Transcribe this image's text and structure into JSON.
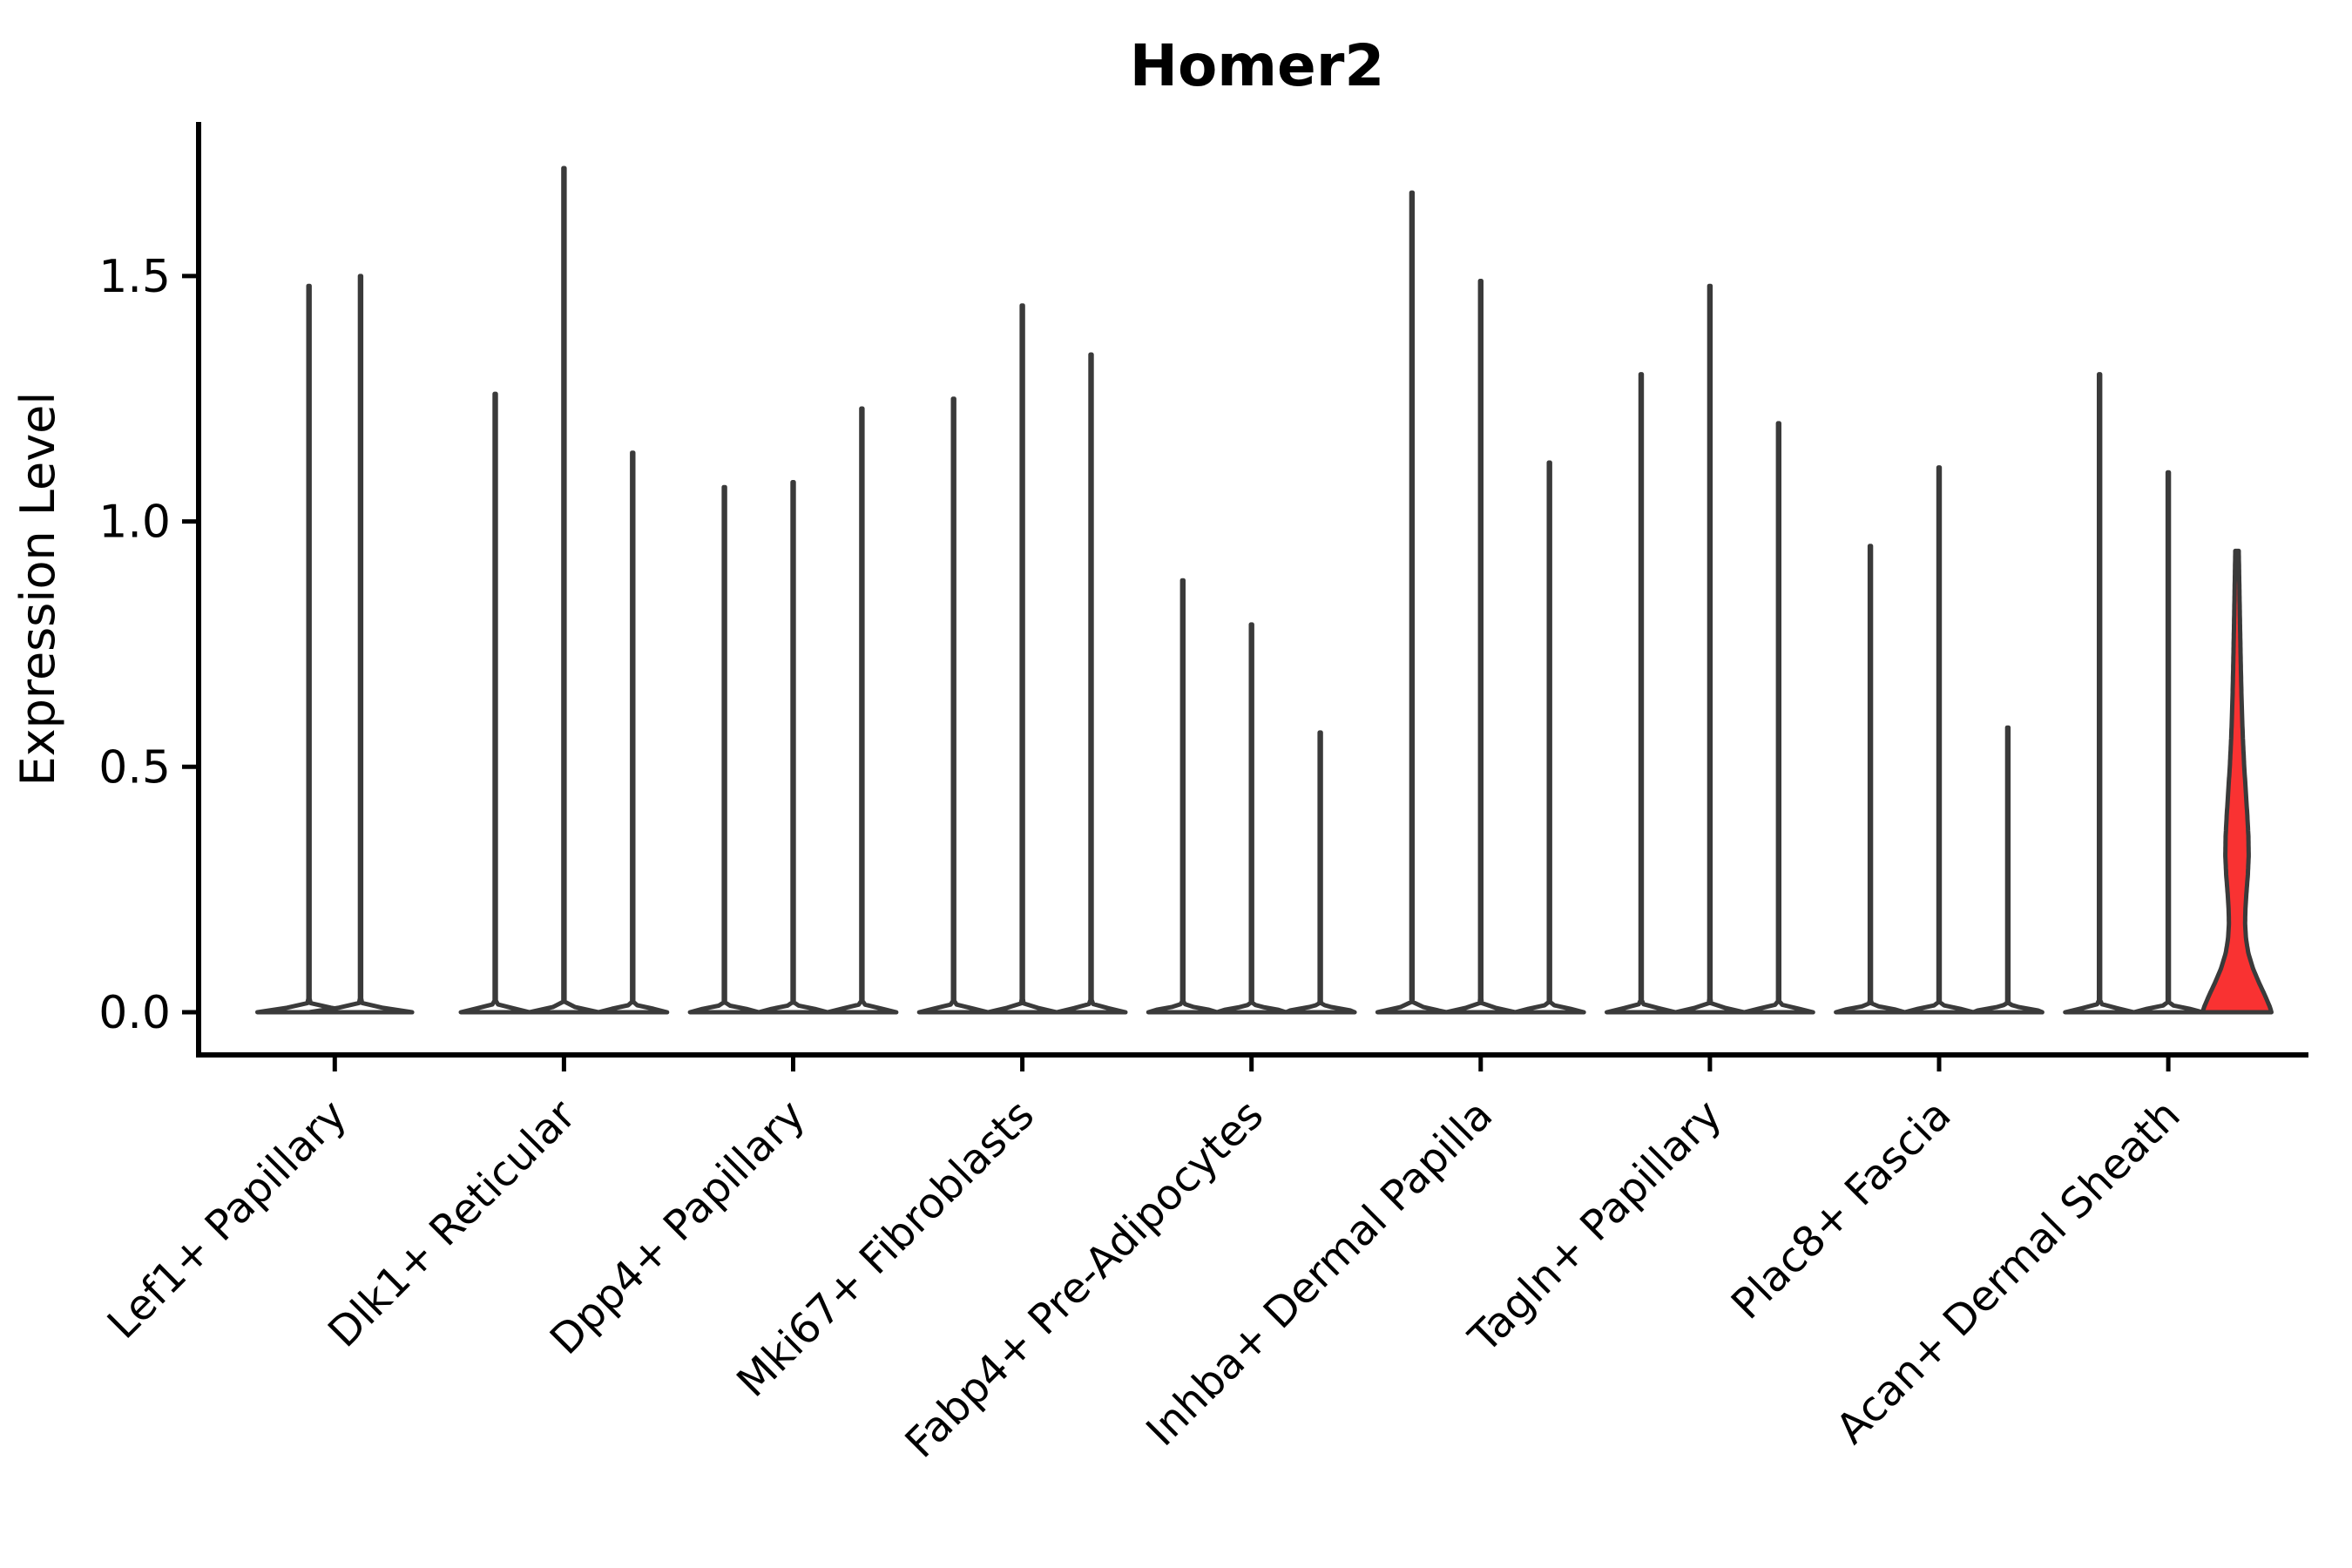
{
  "chart_data": {
    "type": "violin",
    "title": "Homer2",
    "ylabel": "Expression Level",
    "xlabel": "",
    "yticks": [
      {
        "label": "0.0",
        "value": 0.0
      },
      {
        "label": "0.5",
        "value": 0.5
      },
      {
        "label": "1.0",
        "value": 1.0
      },
      {
        "label": "1.5",
        "value": 1.5
      }
    ],
    "ylim": [
      -0.087,
      1.81
    ],
    "grid": "off",
    "legend": "none",
    "categories": [
      "Lef1+ Papillary",
      "Dlk1+ Reticular",
      "Dpp4+ Papillary",
      "Mki67+ Fibroblasts",
      "Fabp4+ Pre-Adipocytes",
      "Inhba+ Dermal Papilla",
      "Tagln+ Papillary",
      "Plac8+ Fascia",
      "Acan+ Dermal Sheath"
    ],
    "groups": [
      {
        "category": "Lef1+ Papillary",
        "violins": [
          {
            "max": 1.48
          },
          {
            "max": 1.5
          }
        ]
      },
      {
        "category": "Dlk1+ Reticular",
        "violins": [
          {
            "max": 1.26
          },
          {
            "max": 1.72
          },
          {
            "max": 1.14
          }
        ]
      },
      {
        "category": "Dpp4+ Papillary",
        "violins": [
          {
            "max": 1.07
          },
          {
            "max": 1.08
          },
          {
            "max": 1.23
          }
        ]
      },
      {
        "category": "Mki67+ Fibroblasts",
        "violins": [
          {
            "max": 1.25
          },
          {
            "max": 1.44
          },
          {
            "max": 1.34
          }
        ]
      },
      {
        "category": "Fabp4+ Pre-Adipocytes",
        "violins": [
          {
            "max": 0.88
          },
          {
            "max": 0.79
          },
          {
            "max": 0.57
          }
        ]
      },
      {
        "category": "Inhba+ Dermal Papilla",
        "violins": [
          {
            "max": 1.67
          },
          {
            "max": 1.49
          },
          {
            "max": 1.12
          }
        ]
      },
      {
        "category": "Tagln+ Papillary",
        "violins": [
          {
            "max": 1.3
          },
          {
            "max": 1.48
          },
          {
            "max": 1.2
          }
        ]
      },
      {
        "category": "Plac8+ Fascia",
        "violins": [
          {
            "max": 0.95
          },
          {
            "max": 1.11
          },
          {
            "max": 0.58
          }
        ]
      },
      {
        "category": "Acan+ Dermal Sheath",
        "violins": [
          {
            "max": 1.3
          },
          {
            "max": 1.1
          },
          {
            "max": 0.94,
            "highlight": true,
            "profile": [
              [
                0.0,
                1.0
              ],
              [
                0.01,
                0.96
              ],
              [
                0.03,
                0.84
              ],
              [
                0.06,
                0.64
              ],
              [
                0.09,
                0.46
              ],
              [
                0.12,
                0.33
              ],
              [
                0.15,
                0.26
              ],
              [
                0.18,
                0.235
              ],
              [
                0.21,
                0.243
              ],
              [
                0.24,
                0.27
              ],
              [
                0.28,
                0.315
              ],
              [
                0.32,
                0.34
              ],
              [
                0.36,
                0.33
              ],
              [
                0.4,
                0.3
              ],
              [
                0.45,
                0.255
              ],
              [
                0.5,
                0.21
              ],
              [
                0.55,
                0.175
              ],
              [
                0.6,
                0.148
              ],
              [
                0.65,
                0.128
              ],
              [
                0.7,
                0.112
              ],
              [
                0.75,
                0.098
              ],
              [
                0.8,
                0.085
              ],
              [
                0.85,
                0.072
              ],
              [
                0.9,
                0.06
              ],
              [
                0.94,
                0.05
              ]
            ]
          }
        ]
      }
    ],
    "colors": {
      "violin_stroke": "#3a3a3a",
      "violin_fill": "#ffffff",
      "highlight_fill": "#f93232",
      "axis": "#000000",
      "background": "#ffffff"
    }
  }
}
